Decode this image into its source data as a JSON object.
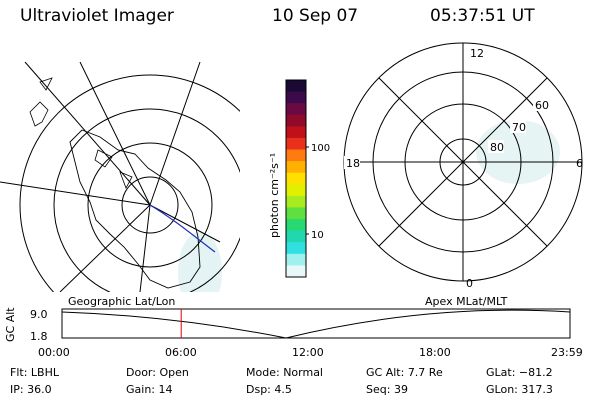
{
  "header": {
    "instrument": "Ultraviolet Imager",
    "date": "10 Sep 07",
    "time": "05:37:51 UT"
  },
  "colorbar": {
    "ticks": [
      "100",
      "10"
    ],
    "unit_label": "photon cm⁻²s⁻¹",
    "colors": [
      "#1a0a33",
      "#3b0a4a",
      "#6a0a44",
      "#900a2a",
      "#c0101a",
      "#e8301a",
      "#ff7a10",
      "#ffb000",
      "#ffe000",
      "#e0f000",
      "#a8ec20",
      "#60e040",
      "#28d870",
      "#20d8b0",
      "#30e0e0",
      "#a0f0f0",
      "#e8f8f8"
    ]
  },
  "left_map": {
    "label": "Geographic Lat/Lon"
  },
  "right_map": {
    "label": "Apex MLat/MLT",
    "mlt_labels": {
      "top": "12",
      "left": "18",
      "right": "6",
      "bottom": "0"
    },
    "lat_labels": [
      "60",
      "70",
      "80"
    ]
  },
  "timeline": {
    "ylabel": "GC Alt",
    "y_ticks": [
      "9.0",
      "1.8"
    ],
    "x_ticks": [
      "00:00",
      "06:00",
      "12:00",
      "18:00",
      "23:59"
    ],
    "current_marker_hours": 5.63
  },
  "status": {
    "row1": [
      {
        "label": "Flt:",
        "value": "LBHL"
      },
      {
        "label": "Door:",
        "value": "Open"
      },
      {
        "label": "Mode:",
        "value": "Normal"
      },
      {
        "label": "GC Alt:",
        "value": "7.7 Re"
      },
      {
        "label": "GLat:",
        "value": "−81.2"
      }
    ],
    "row2": [
      {
        "label": "IP:",
        "value": "36.0"
      },
      {
        "label": "Gain:",
        "value": "14"
      },
      {
        "label": "Dsp:",
        "value": "4.5"
      },
      {
        "label": "Seq:",
        "value": "39"
      },
      {
        "label": "GLon:",
        "value": "317.3"
      }
    ]
  }
}
